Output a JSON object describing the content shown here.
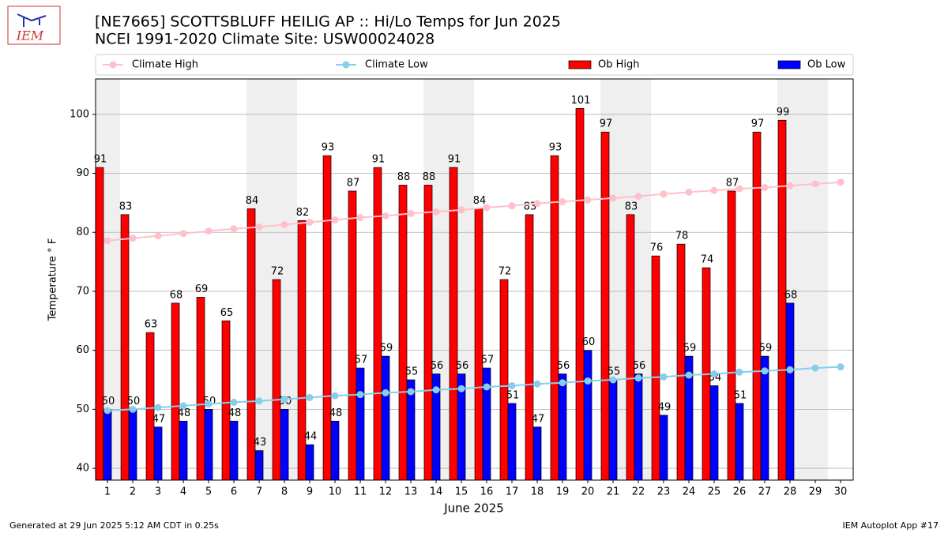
{
  "chart_data": {
    "type": "bar",
    "logo_text": "IEM",
    "title": "[NE7665] SCOTTSBLUFF HEILIG AP :: Hi/Lo Temps for Jun 2025",
    "subtitle": "NCEI 1991-2020 Climate Site: USW00024028",
    "x_label": "June 2025",
    "y_label": "Temperature ° F",
    "footer_left": "Generated at 29 Jun 2025 5:12 AM CDT in 0.25s",
    "footer_right": "IEM Autoplot App #17",
    "x": [
      1,
      2,
      3,
      4,
      5,
      6,
      7,
      8,
      9,
      10,
      11,
      12,
      13,
      14,
      15,
      16,
      17,
      18,
      19,
      20,
      21,
      22,
      23,
      24,
      25,
      26,
      27,
      28,
      29,
      30
    ],
    "xlim": [
      0.53,
      30.5
    ],
    "ylim": [
      38,
      106
    ],
    "yticks": [
      40,
      50,
      60,
      70,
      80,
      90,
      100
    ],
    "grid": true,
    "shaded_days": [
      1,
      7,
      8,
      14,
      15,
      21,
      22,
      28,
      29
    ],
    "series": [
      {
        "name": "Climate High",
        "type": "line",
        "color": "#ffc0cb",
        "values": [
          78.6,
          79.0,
          79.4,
          79.8,
          80.2,
          80.6,
          80.9,
          81.3,
          81.7,
          82.1,
          82.5,
          82.8,
          83.2,
          83.5,
          83.8,
          84.2,
          84.5,
          84.9,
          85.2,
          85.5,
          85.8,
          86.1,
          86.5,
          86.8,
          87.1,
          87.4,
          87.6,
          87.9,
          88.2,
          88.5
        ]
      },
      {
        "name": "Climate Low",
        "type": "line",
        "color": "#87ceeb",
        "values": [
          49.8,
          50.0,
          50.3,
          50.6,
          50.9,
          51.2,
          51.4,
          51.7,
          52.0,
          52.3,
          52.5,
          52.8,
          53.0,
          53.3,
          53.5,
          53.8,
          54.0,
          54.3,
          54.5,
          54.8,
          55.0,
          55.3,
          55.5,
          55.8,
          56.0,
          56.3,
          56.5,
          56.7,
          57.0,
          57.2
        ]
      },
      {
        "name": "Ob High",
        "type": "bar",
        "color": "#ff0000",
        "values": [
          91,
          83,
          63,
          68,
          69,
          65,
          84,
          72,
          82,
          93,
          87,
          91,
          88,
          88,
          91,
          84,
          72,
          83,
          93,
          101,
          97,
          83,
          76,
          78,
          74,
          87,
          97,
          99,
          null,
          null
        ]
      },
      {
        "name": "Ob Low",
        "type": "bar",
        "color": "#0000ff",
        "values": [
          50,
          50,
          47,
          48,
          50,
          48,
          43,
          50,
          44,
          48,
          57,
          59,
          55,
          56,
          56,
          57,
          51,
          47,
          56,
          60,
          55,
          56,
          49,
          59,
          54,
          51,
          59,
          68,
          null,
          null
        ]
      }
    ]
  }
}
